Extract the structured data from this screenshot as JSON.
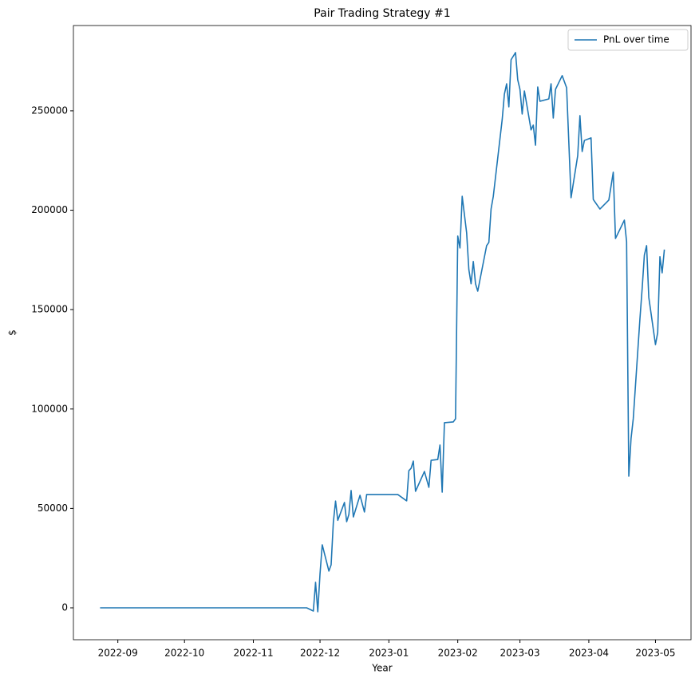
{
  "chart_data": {
    "type": "line",
    "title": "Pair Trading Strategy #1",
    "x_label": "Year",
    "y_label": "$",
    "x": [
      "2022-08-24",
      "2022-11-25",
      "2022-11-28",
      "2022-11-29",
      "2022-11-30",
      "2022-12-01",
      "2022-12-02",
      "2022-12-05",
      "2022-12-06",
      "2022-12-07",
      "2022-12-08",
      "2022-12-09",
      "2022-12-12",
      "2022-12-13",
      "2022-12-14",
      "2022-12-15",
      "2022-12-16",
      "2022-12-19",
      "2022-12-21",
      "2022-12-22",
      "2023-01-05",
      "2023-01-09",
      "2023-01-10",
      "2023-01-11",
      "2023-01-12",
      "2023-01-13",
      "2023-01-17",
      "2023-01-19",
      "2023-01-20",
      "2023-01-23",
      "2023-01-24",
      "2023-01-25",
      "2023-01-26",
      "2023-01-30",
      "2023-01-31",
      "2023-02-01",
      "2023-02-02",
      "2023-02-03",
      "2023-02-05",
      "2023-02-06",
      "2023-02-07",
      "2023-02-08",
      "2023-02-09",
      "2023-02-10",
      "2023-02-14",
      "2023-02-15",
      "2023-02-16",
      "2023-02-17",
      "2023-02-21",
      "2023-02-22",
      "2023-02-23",
      "2023-02-24",
      "2023-02-25",
      "2023-02-27",
      "2023-02-28",
      "2023-03-01",
      "2023-03-02",
      "2023-03-03",
      "2023-03-04",
      "2023-03-06",
      "2023-03-07",
      "2023-03-08",
      "2023-03-09",
      "2023-03-10",
      "2023-03-14",
      "2023-03-15",
      "2023-03-16",
      "2023-03-17",
      "2023-03-20",
      "2023-03-22",
      "2023-03-24",
      "2023-03-27",
      "2023-03-28",
      "2023-03-29",
      "2023-03-30",
      "2023-04-02",
      "2023-04-03",
      "2023-04-06",
      "2023-04-10",
      "2023-04-12",
      "2023-04-13",
      "2023-04-17",
      "2023-04-18",
      "2023-04-19",
      "2023-04-20",
      "2023-04-21",
      "2023-04-24",
      "2023-04-25",
      "2023-04-26",
      "2023-04-27",
      "2023-04-28",
      "2023-05-01",
      "2023-05-02",
      "2023-05-03",
      "2023-05-04",
      "2023-05-05"
    ],
    "series": [
      {
        "name": "PnL over time",
        "color": "#1f77b4",
        "values": [
          0,
          0,
          -1600,
          12800,
          -2000,
          17000,
          31700,
          18500,
          21600,
          43000,
          53700,
          44000,
          53000,
          43300,
          47000,
          59000,
          45700,
          56600,
          48200,
          57000,
          57000,
          53800,
          69000,
          70200,
          73800,
          58600,
          68600,
          60600,
          74200,
          74600,
          81900,
          58200,
          93100,
          93500,
          95100,
          187000,
          181000,
          207000,
          188600,
          170100,
          163000,
          174200,
          163000,
          159300,
          182200,
          183800,
          200600,
          207000,
          245600,
          258400,
          263600,
          252000,
          275700,
          279300,
          265600,
          260800,
          248400,
          260000,
          253600,
          240400,
          242800,
          232700,
          262000,
          254800,
          256000,
          263600,
          246400,
          260800,
          267700,
          261600,
          206300,
          227500,
          247600,
          229500,
          235100,
          236400,
          205400,
          200600,
          205100,
          219100,
          185800,
          195000,
          184200,
          66200,
          85100,
          95100,
          145300,
          160500,
          177400,
          182200,
          156100,
          132400,
          138400,
          176600,
          168500,
          180200
        ]
      }
    ],
    "xlim": [
      "2022-08-12",
      "2023-05-17"
    ],
    "xticks": [
      "2022-09",
      "2022-10",
      "2022-11",
      "2022-12",
      "2023-01",
      "2023-02",
      "2023-03",
      "2023-04",
      "2023-05"
    ],
    "ylim": [
      -16050,
      292900
    ],
    "yticks": [
      0,
      50000,
      100000,
      150000,
      200000,
      250000
    ],
    "legend": "upper right",
    "grid": false
  }
}
